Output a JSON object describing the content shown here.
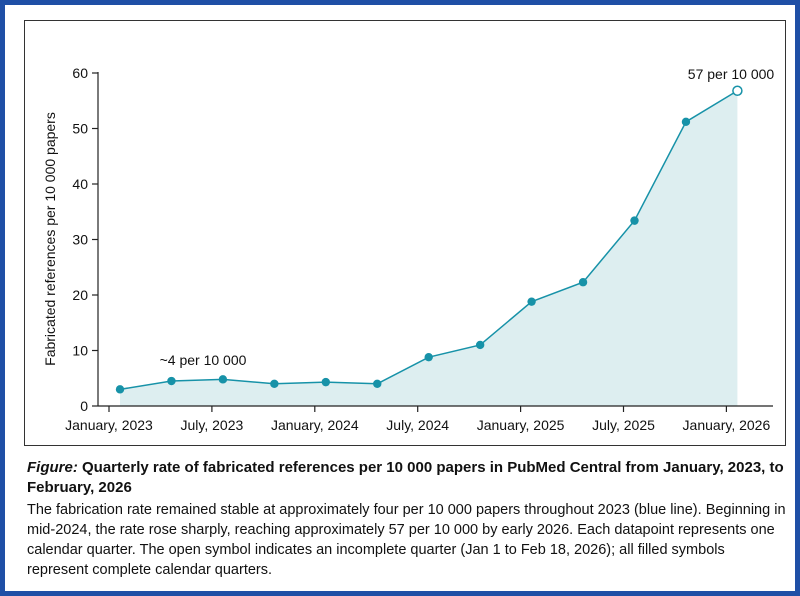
{
  "chart_data": {
    "type": "area",
    "title": "",
    "xlabel": "",
    "ylabel": "Fabricated references per 10 000 papers",
    "x_tick_labels": [
      "January, 2023",
      "July, 2023",
      "January, 2024",
      "July, 2024",
      "January, 2025",
      "July, 2025",
      "January, 2026"
    ],
    "ylim": [
      0,
      60
    ],
    "y_ticks": [
      "0",
      "10",
      "20",
      "30",
      "40",
      "50",
      "60"
    ],
    "grid": false,
    "series": [
      {
        "points": [
          {
            "quarter": "Q1 2023",
            "y": 3.0
          },
          {
            "quarter": "Q2 2023",
            "y": 4.5
          },
          {
            "quarter": "Q3 2023",
            "y": 4.8
          },
          {
            "quarter": "Q4 2023",
            "y": 4.0
          },
          {
            "quarter": "Q1 2024",
            "y": 4.3
          },
          {
            "quarter": "Q2 2024",
            "y": 4.0
          },
          {
            "quarter": "Q3 2024",
            "y": 8.8
          },
          {
            "quarter": "Q4 2024",
            "y": 11.0
          },
          {
            "quarter": "Q1 2025",
            "y": 18.8
          },
          {
            "quarter": "Q2 2025",
            "y": 22.3
          },
          {
            "quarter": "Q3 2025",
            "y": 33.4
          },
          {
            "quarter": "Q4 2025",
            "y": 51.2
          },
          {
            "quarter": "Q1 2026",
            "y": 56.8,
            "incomplete": true
          }
        ]
      }
    ],
    "annotations": [
      {
        "text": "~4 per 10 000",
        "near": "Q3 2023"
      },
      {
        "text": "57 per 10 000",
        "near": "Q1 2026"
      }
    ],
    "colors": {
      "line": "#1792a8",
      "fill": "#ddeef0",
      "marker": "#1792a8",
      "open_marker_fill": "#ffffff"
    }
  },
  "caption": {
    "figure_label": "Figure:",
    "title": " Quarterly rate of fabricated references per 10 000 papers in PubMed Central from January, 2023, to February, 2026",
    "body": "The fabrication rate remained stable at approximately four per 10 000 papers throughout 2023 (blue line). Beginning in mid-2024, the rate rose sharply, reaching approximately 57 per 10 000 by early 2026. Each datapoint represents one calendar quarter. The open symbol indicates an incomplete quarter (Jan 1 to Feb 18, 2026); all filled symbols represent complete calendar quarters."
  },
  "colors": {
    "frame_border": "#1f4fa6"
  }
}
